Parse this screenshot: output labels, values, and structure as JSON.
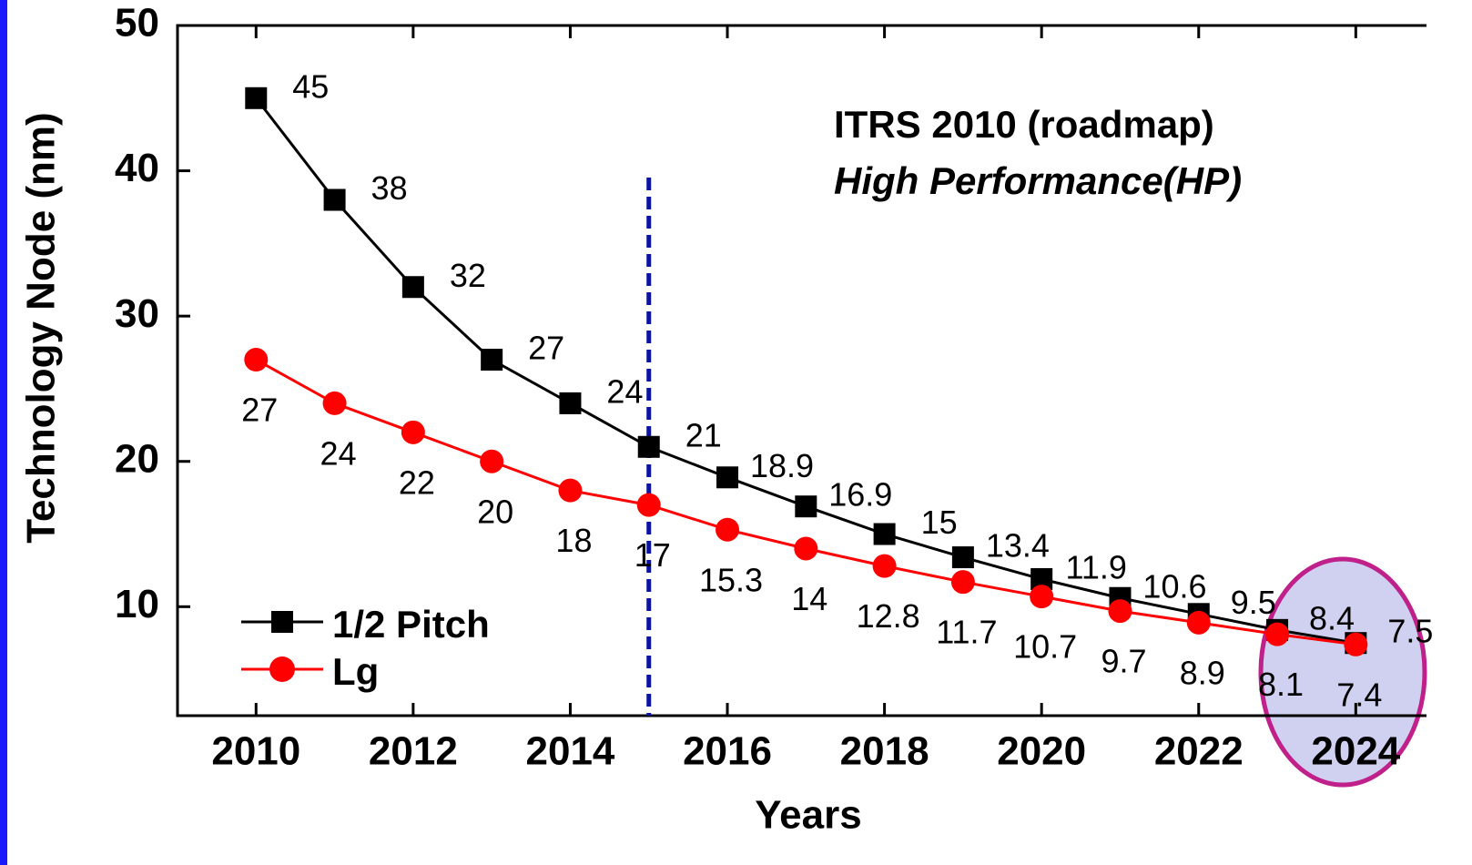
{
  "chart_data": {
    "type": "line",
    "x_label": "Years",
    "y_label": "Technology Node (nm)",
    "annotations": [
      "ITRS 2010 (roadmap)",
      "High Performance(HP)"
    ],
    "x": [
      2010,
      2011,
      2012,
      2013,
      2014,
      2015,
      2016,
      2017,
      2018,
      2019,
      2020,
      2021,
      2022,
      2023,
      2024
    ],
    "series": [
      {
        "name": "1/2 Pitch",
        "color": "#000000",
        "marker": "square",
        "values": [
          45,
          38,
          32,
          27,
          24,
          21,
          18.9,
          16.9,
          15,
          13.4,
          11.9,
          10.6,
          9.5,
          8.4,
          7.5
        ]
      },
      {
        "name": "Lg",
        "color": "#ff0000",
        "marker": "circle",
        "values": [
          27,
          24,
          22,
          20,
          18,
          17,
          15.3,
          14,
          12.8,
          11.7,
          10.7,
          9.7,
          8.9,
          8.1,
          7.4
        ]
      }
    ],
    "xlim": [
      2009,
      2024.9
    ],
    "ylim": [
      2.5,
      50
    ],
    "xticks": [
      2010,
      2012,
      2014,
      2016,
      2018,
      2020,
      2022,
      2024
    ],
    "yticks": [
      10,
      20,
      30,
      40,
      50
    ],
    "vline": 2015,
    "vline_color": "#0a14a0",
    "legend": "lower left"
  }
}
